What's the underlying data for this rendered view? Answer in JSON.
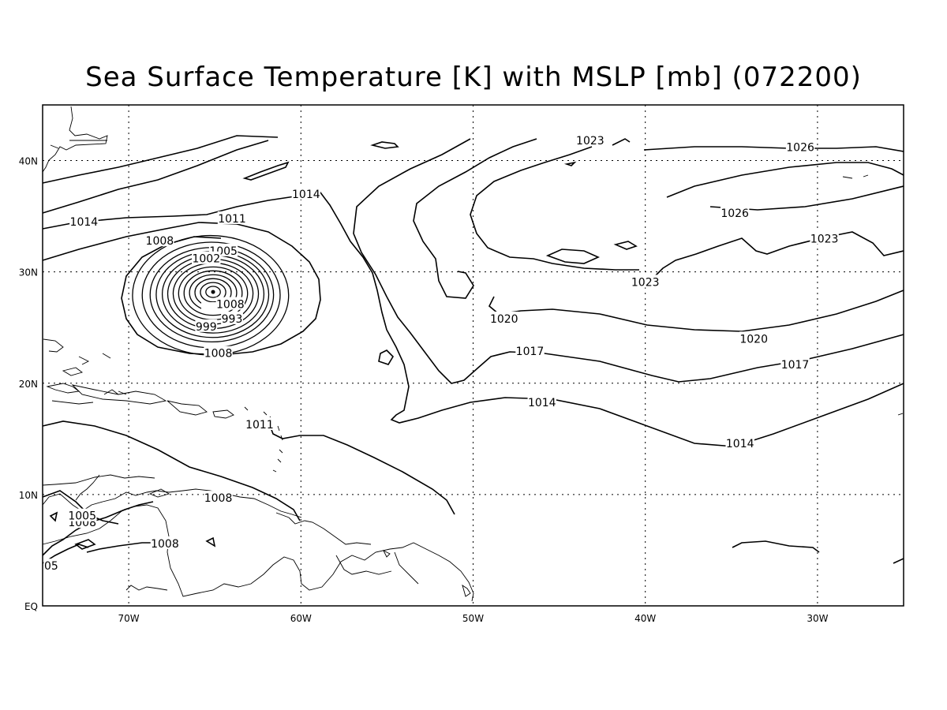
{
  "title": "Sea Surface Temperature [K] with MSLP [mb] (072200)",
  "map": {
    "lon_range": [
      -75,
      -25
    ],
    "lat_range": [
      0,
      45
    ],
    "grid": "dotted",
    "x_ticks": [
      {
        "lon": -70,
        "label": "70W"
      },
      {
        "lon": -60,
        "label": "60W"
      },
      {
        "lon": -50,
        "label": "50W"
      },
      {
        "lon": -40,
        "label": "40W"
      },
      {
        "lon": -30,
        "label": "30W"
      }
    ],
    "y_ticks": [
      {
        "lat": 0,
        "label": "EQ"
      },
      {
        "lat": 10,
        "label": "10N"
      },
      {
        "lat": 20,
        "label": "20N"
      },
      {
        "lat": 30,
        "label": "30N"
      },
      {
        "lat": 40,
        "label": "40N"
      }
    ],
    "low_center": {
      "lon": -65.1,
      "lat": 28.2
    },
    "isobar_labels": [
      {
        "text": "1023",
        "lon": -43.2,
        "lat": 41.8
      },
      {
        "text": "1026",
        "lon": -31.0,
        "lat": 41.2
      },
      {
        "text": "1014",
        "lon": -59.7,
        "lat": 37.0
      },
      {
        "text": "1014",
        "lon": -72.6,
        "lat": 34.5
      },
      {
        "text": "1011",
        "lon": -64.0,
        "lat": 34.8
      },
      {
        "text": "1008",
        "lon": -68.2,
        "lat": 32.8
      },
      {
        "text": "1005",
        "lon": -64.5,
        "lat": 31.9
      },
      {
        "text": "1002",
        "lon": -65.5,
        "lat": 31.2
      },
      {
        "text": "1026",
        "lon": -34.8,
        "lat": 35.3
      },
      {
        "text": "1023",
        "lon": -29.6,
        "lat": 33.0
      },
      {
        "text": "1023",
        "lon": -40.0,
        "lat": 29.1
      },
      {
        "text": "1020",
        "lon": -48.2,
        "lat": 25.8
      },
      {
        "text": "1020",
        "lon": -33.7,
        "lat": 24.0
      },
      {
        "text": "1017",
        "lon": -46.7,
        "lat": 22.9
      },
      {
        "text": "1017",
        "lon": -31.3,
        "lat": 21.7
      },
      {
        "text": "1014",
        "lon": -46.0,
        "lat": 18.3
      },
      {
        "text": "1014",
        "lon": -34.5,
        "lat": 14.6
      },
      {
        "text": "1011",
        "lon": -62.4,
        "lat": 16.3
      },
      {
        "text": "1008",
        "lon": -64.1,
        "lat": 27.1
      },
      {
        "text": "999",
        "lon": -65.5,
        "lat": 25.1
      },
      {
        "text": "993",
        "lon": -64.0,
        "lat": 25.8
      },
      {
        "text": "1008",
        "lon": -64.8,
        "lat": 22.7
      },
      {
        "text": "1008",
        "lon": -64.8,
        "lat": 9.7
      },
      {
        "text": "1008",
        "lon": -72.7,
        "lat": 7.5
      },
      {
        "text": "1005",
        "lon": -72.7,
        "lat": 8.1
      },
      {
        "text": "1008",
        "lon": -67.9,
        "lat": 5.6
      },
      {
        "text": "05",
        "lon": -74.5,
        "lat": 3.6
      }
    ]
  }
}
